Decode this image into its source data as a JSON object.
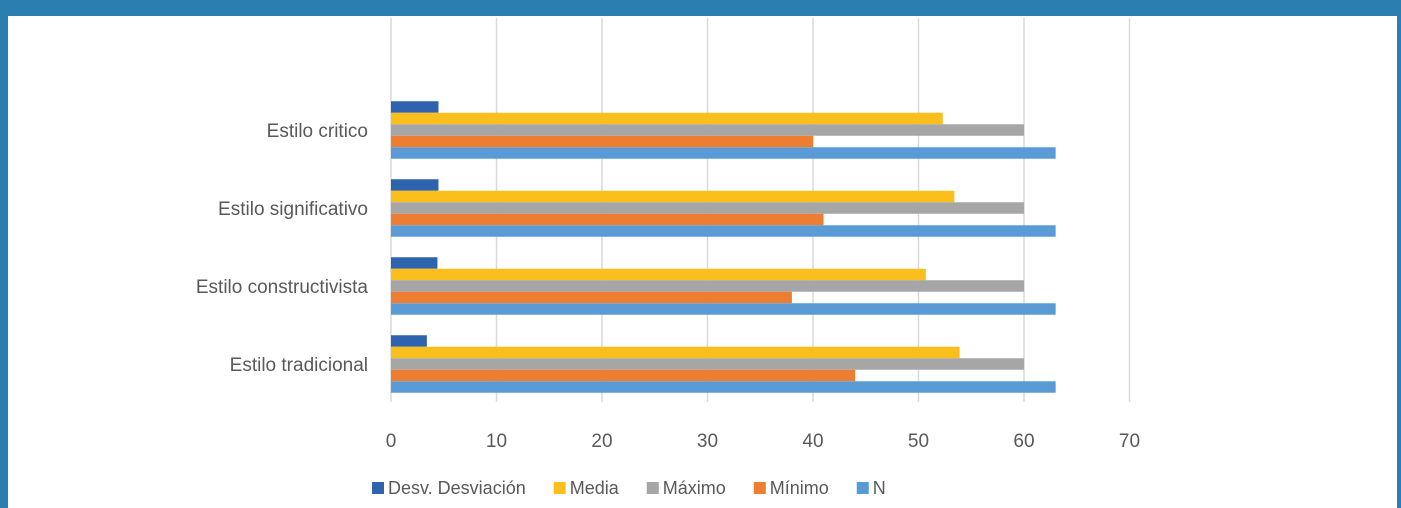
{
  "chart_data": {
    "type": "bar",
    "orientation": "horizontal",
    "categories": [
      "Estilo tradicional",
      "Estilo constructivista",
      "Estilo significativo",
      "Estilo critico"
    ],
    "series": [
      {
        "name": "Desv. Desviación",
        "values": [
          3.4,
          4.4,
          4.5,
          4.5
        ],
        "color": "#2e63ad"
      },
      {
        "name": "Media",
        "values": [
          53.9,
          50.7,
          53.4,
          52.3
        ],
        "color": "#fbbf1d"
      },
      {
        "name": "Máximo",
        "values": [
          60,
          60,
          60,
          60
        ],
        "color": "#a6a6a6"
      },
      {
        "name": "Mínimo",
        "values": [
          44,
          38,
          41,
          40
        ],
        "color": "#ed7d31"
      },
      {
        "name": "N",
        "values": [
          63,
          63,
          63,
          63
        ],
        "color": "#5b9bd5"
      }
    ],
    "xlim": [
      0,
      70
    ],
    "xticks": [
      "0",
      "10",
      "20",
      "30",
      "40",
      "50",
      "60",
      "70"
    ],
    "grid": true,
    "legend_position": "bottom",
    "title": "",
    "xlabel": "",
    "ylabel": ""
  }
}
